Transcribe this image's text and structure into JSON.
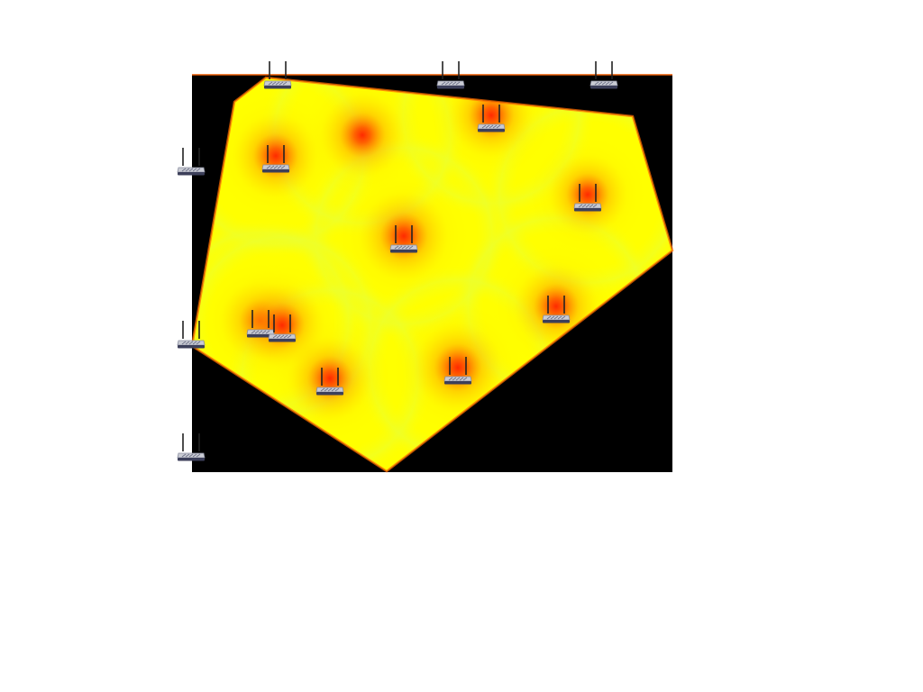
{
  "colors": {
    "background": "#ffffff",
    "field_background": "#000000",
    "coverage_base": "#ffff00",
    "coverage_mid": "#ffee00",
    "coverage_hot": "#ff2a00",
    "coverage_edge": "#ff6a00",
    "frame_top_edge": "#e85a00",
    "router_body": "#c9cbd3",
    "router_dark": "#3c3f5a",
    "router_antenna": "#222222"
  },
  "routers": {
    "interior": [
      {
        "id": "router-a",
        "strength": 0.9
      },
      {
        "id": "router-b",
        "strength": 0.9
      },
      {
        "id": "router-c",
        "strength": 0.85
      },
      {
        "id": "router-d",
        "strength": 0.95
      },
      {
        "id": "router-e",
        "strength": 0.85
      },
      {
        "id": "router-f",
        "strength": 0.9
      },
      {
        "id": "router-g",
        "strength": 0.9
      },
      {
        "id": "router-h",
        "strength": 0.9
      },
      {
        "id": "router-i",
        "strength": 0.95
      },
      {
        "id": "router-j",
        "strength": 0.9
      }
    ],
    "boundary": [
      {
        "id": "router-top-1"
      },
      {
        "id": "router-top-2"
      },
      {
        "id": "router-top-3"
      },
      {
        "id": "router-left-1"
      },
      {
        "id": "router-left-2"
      },
      {
        "id": "router-left-3"
      }
    ]
  },
  "icons": {
    "router": "wifi-router-icon"
  }
}
